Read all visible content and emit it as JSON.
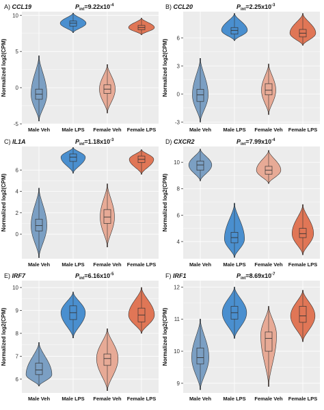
{
  "colors": {
    "male_veh": "#7b9fc3",
    "male_lps": "#4a8fcf",
    "female_veh": "#e7aa96",
    "female_lps": "#e07656",
    "panel_bg": "#ececec",
    "grid": "#ffffff"
  },
  "chart_data": [
    {
      "type": "violin",
      "panel_label": "A)",
      "gene": "CCL19",
      "p_label": "P",
      "p_sub": "int",
      "p_value": "=9.22x10",
      "p_exp": "-4",
      "ylabel": "Normalized log2(CPM)",
      "ylim": [
        -5,
        10.5
      ],
      "yticks": [
        -5,
        0,
        5,
        10
      ],
      "categories": [
        "Male Veh",
        "Male LPS",
        "Female Veh",
        "Female LPS"
      ],
      "groups": [
        {
          "min": -4.6,
          "max": 4.4,
          "q1": -1.6,
          "median": -0.9,
          "q3": -0.2,
          "peak": -0.9,
          "width": 0.55
        },
        {
          "min": 7.6,
          "max": 10.3,
          "q1": 8.5,
          "median": 8.9,
          "q3": 9.2,
          "peak": 8.9,
          "width": 0.9
        },
        {
          "min": -3.5,
          "max": 3.2,
          "q1": -0.8,
          "median": -0.2,
          "q3": 0.4,
          "peak": -0.2,
          "width": 0.55
        },
        {
          "min": 7.3,
          "max": 9.6,
          "q1": 8.0,
          "median": 8.3,
          "q3": 8.6,
          "peak": 8.3,
          "width": 0.9
        }
      ]
    },
    {
      "type": "violin",
      "panel_label": "B)",
      "gene": "CCL20",
      "p_label": "P",
      "p_sub": "int",
      "p_value": "=2.25x10",
      "p_exp": "-3",
      "ylabel": "Normalized log2(CPM)",
      "ylim": [
        -3.2,
        8.8
      ],
      "yticks": [
        -3,
        0,
        3,
        6
      ],
      "categories": [
        "Male Veh",
        "Male LPS",
        "Female Veh",
        "Female LPS"
      ],
      "groups": [
        {
          "min": -3.0,
          "max": 3.8,
          "q1": -0.8,
          "median": -0.1,
          "q3": 0.5,
          "peak": -0.1,
          "width": 0.55
        },
        {
          "min": 5.7,
          "max": 8.6,
          "q1": 6.4,
          "median": 6.8,
          "q3": 7.1,
          "peak": 6.8,
          "width": 0.9
        },
        {
          "min": -2.2,
          "max": 3.2,
          "q1": -0.1,
          "median": 0.4,
          "q3": 1.1,
          "peak": 0.4,
          "width": 0.5
        },
        {
          "min": 5.2,
          "max": 8.6,
          "q1": 6.1,
          "median": 6.5,
          "q3": 6.9,
          "peak": 6.5,
          "width": 0.9
        }
      ]
    },
    {
      "type": "violin",
      "panel_label": "C)",
      "gene": "IL1A",
      "p_label": "P",
      "p_sub": "int",
      "p_value": "=1.18x10",
      "p_exp": "-3",
      "ylabel": "Normalized log2(CPM)",
      "ylim": [
        -2.3,
        8.2
      ],
      "yticks": [
        0,
        2,
        4,
        6
      ],
      "categories": [
        "Male Veh",
        "Male LPS",
        "Female Veh",
        "Female LPS"
      ],
      "groups": [
        {
          "min": -2.2,
          "max": 4.3,
          "q1": 0.3,
          "median": 0.8,
          "q3": 1.4,
          "peak": 0.8,
          "width": 0.55
        },
        {
          "min": 5.7,
          "max": 8.1,
          "q1": 6.8,
          "median": 7.2,
          "q3": 7.5,
          "peak": 7.2,
          "width": 0.85
        },
        {
          "min": -1.2,
          "max": 4.7,
          "q1": 1.0,
          "median": 1.6,
          "q3": 2.3,
          "peak": 1.6,
          "width": 0.5
        },
        {
          "min": 5.6,
          "max": 7.9,
          "q1": 6.7,
          "median": 7.0,
          "q3": 7.3,
          "peak": 7.0,
          "width": 0.85
        }
      ]
    },
    {
      "type": "violin",
      "panel_label": "D)",
      "gene": "CXCR2",
      "p_label": "P",
      "p_sub": "int",
      "p_value": "=7.99x10",
      "p_exp": "-4",
      "ylabel": "Normalized log2(CPM)",
      "ylim": [
        2.7,
        11.2
      ],
      "yticks": [
        4,
        6,
        8,
        10
      ],
      "categories": [
        "Male Veh",
        "Male LPS",
        "Female Veh",
        "Female LPS"
      ],
      "groups": [
        {
          "min": 8.6,
          "max": 11.0,
          "q1": 9.4,
          "median": 9.8,
          "q3": 10.1,
          "peak": 9.8,
          "width": 0.8
        },
        {
          "min": 2.8,
          "max": 6.9,
          "q1": 3.9,
          "median": 4.3,
          "q3": 4.7,
          "peak": 4.2,
          "width": 0.7
        },
        {
          "min": 8.4,
          "max": 10.9,
          "q1": 9.1,
          "median": 9.4,
          "q3": 9.7,
          "peak": 9.4,
          "width": 0.85
        },
        {
          "min": 3.0,
          "max": 6.8,
          "q1": 4.3,
          "median": 4.6,
          "q3": 5.0,
          "peak": 4.6,
          "width": 0.75
        }
      ]
    },
    {
      "type": "violin",
      "panel_label": "E)",
      "gene": "IRF7",
      "p_label": "P",
      "p_sub": "int",
      "p_value": "=6.16x10",
      "p_exp": "-5",
      "ylabel": "Normalized log2(CPM)",
      "ylim": [
        5.4,
        10.3
      ],
      "yticks": [
        6,
        7,
        8,
        9,
        10
      ],
      "categories": [
        "Male Veh",
        "Male LPS",
        "Female Veh",
        "Female LPS"
      ],
      "groups": [
        {
          "min": 5.7,
          "max": 7.6,
          "q1": 6.2,
          "median": 6.4,
          "q3": 6.7,
          "peak": 6.2,
          "width": 0.9
        },
        {
          "min": 7.8,
          "max": 9.8,
          "q1": 8.6,
          "median": 8.9,
          "q3": 9.2,
          "peak": 8.9,
          "width": 0.85
        },
        {
          "min": 5.5,
          "max": 8.2,
          "q1": 6.6,
          "median": 6.9,
          "q3": 7.1,
          "peak": 6.9,
          "width": 0.75
        },
        {
          "min": 8.0,
          "max": 10.0,
          "q1": 8.5,
          "median": 8.8,
          "q3": 9.1,
          "peak": 8.8,
          "width": 0.9
        }
      ]
    },
    {
      "type": "violin",
      "panel_label": "F)",
      "gene": "IRF1",
      "p_label": "P",
      "p_sub": "int",
      "p_value": "=8.69x10",
      "p_exp": "-7",
      "ylabel": "Normalized log2(CPM)",
      "ylim": [
        8.7,
        12.2
      ],
      "yticks": [
        9,
        10,
        11,
        12
      ],
      "categories": [
        "Male Veh",
        "Male LPS",
        "Female Veh",
        "Female LPS"
      ],
      "groups": [
        {
          "min": 8.8,
          "max": 11.0,
          "q1": 9.6,
          "median": 9.8,
          "q3": 10.1,
          "peak": 9.8,
          "width": 0.6
        },
        {
          "min": 10.4,
          "max": 12.0,
          "q1": 11.0,
          "median": 11.2,
          "q3": 11.4,
          "peak": 11.2,
          "width": 0.85
        },
        {
          "min": 8.9,
          "max": 11.4,
          "q1": 10.0,
          "median": 10.4,
          "q3": 10.6,
          "peak": 10.5,
          "width": 0.55
        },
        {
          "min": 10.3,
          "max": 11.9,
          "q1": 10.9,
          "median": 11.1,
          "q3": 11.4,
          "peak": 11.1,
          "width": 0.85
        }
      ]
    }
  ]
}
